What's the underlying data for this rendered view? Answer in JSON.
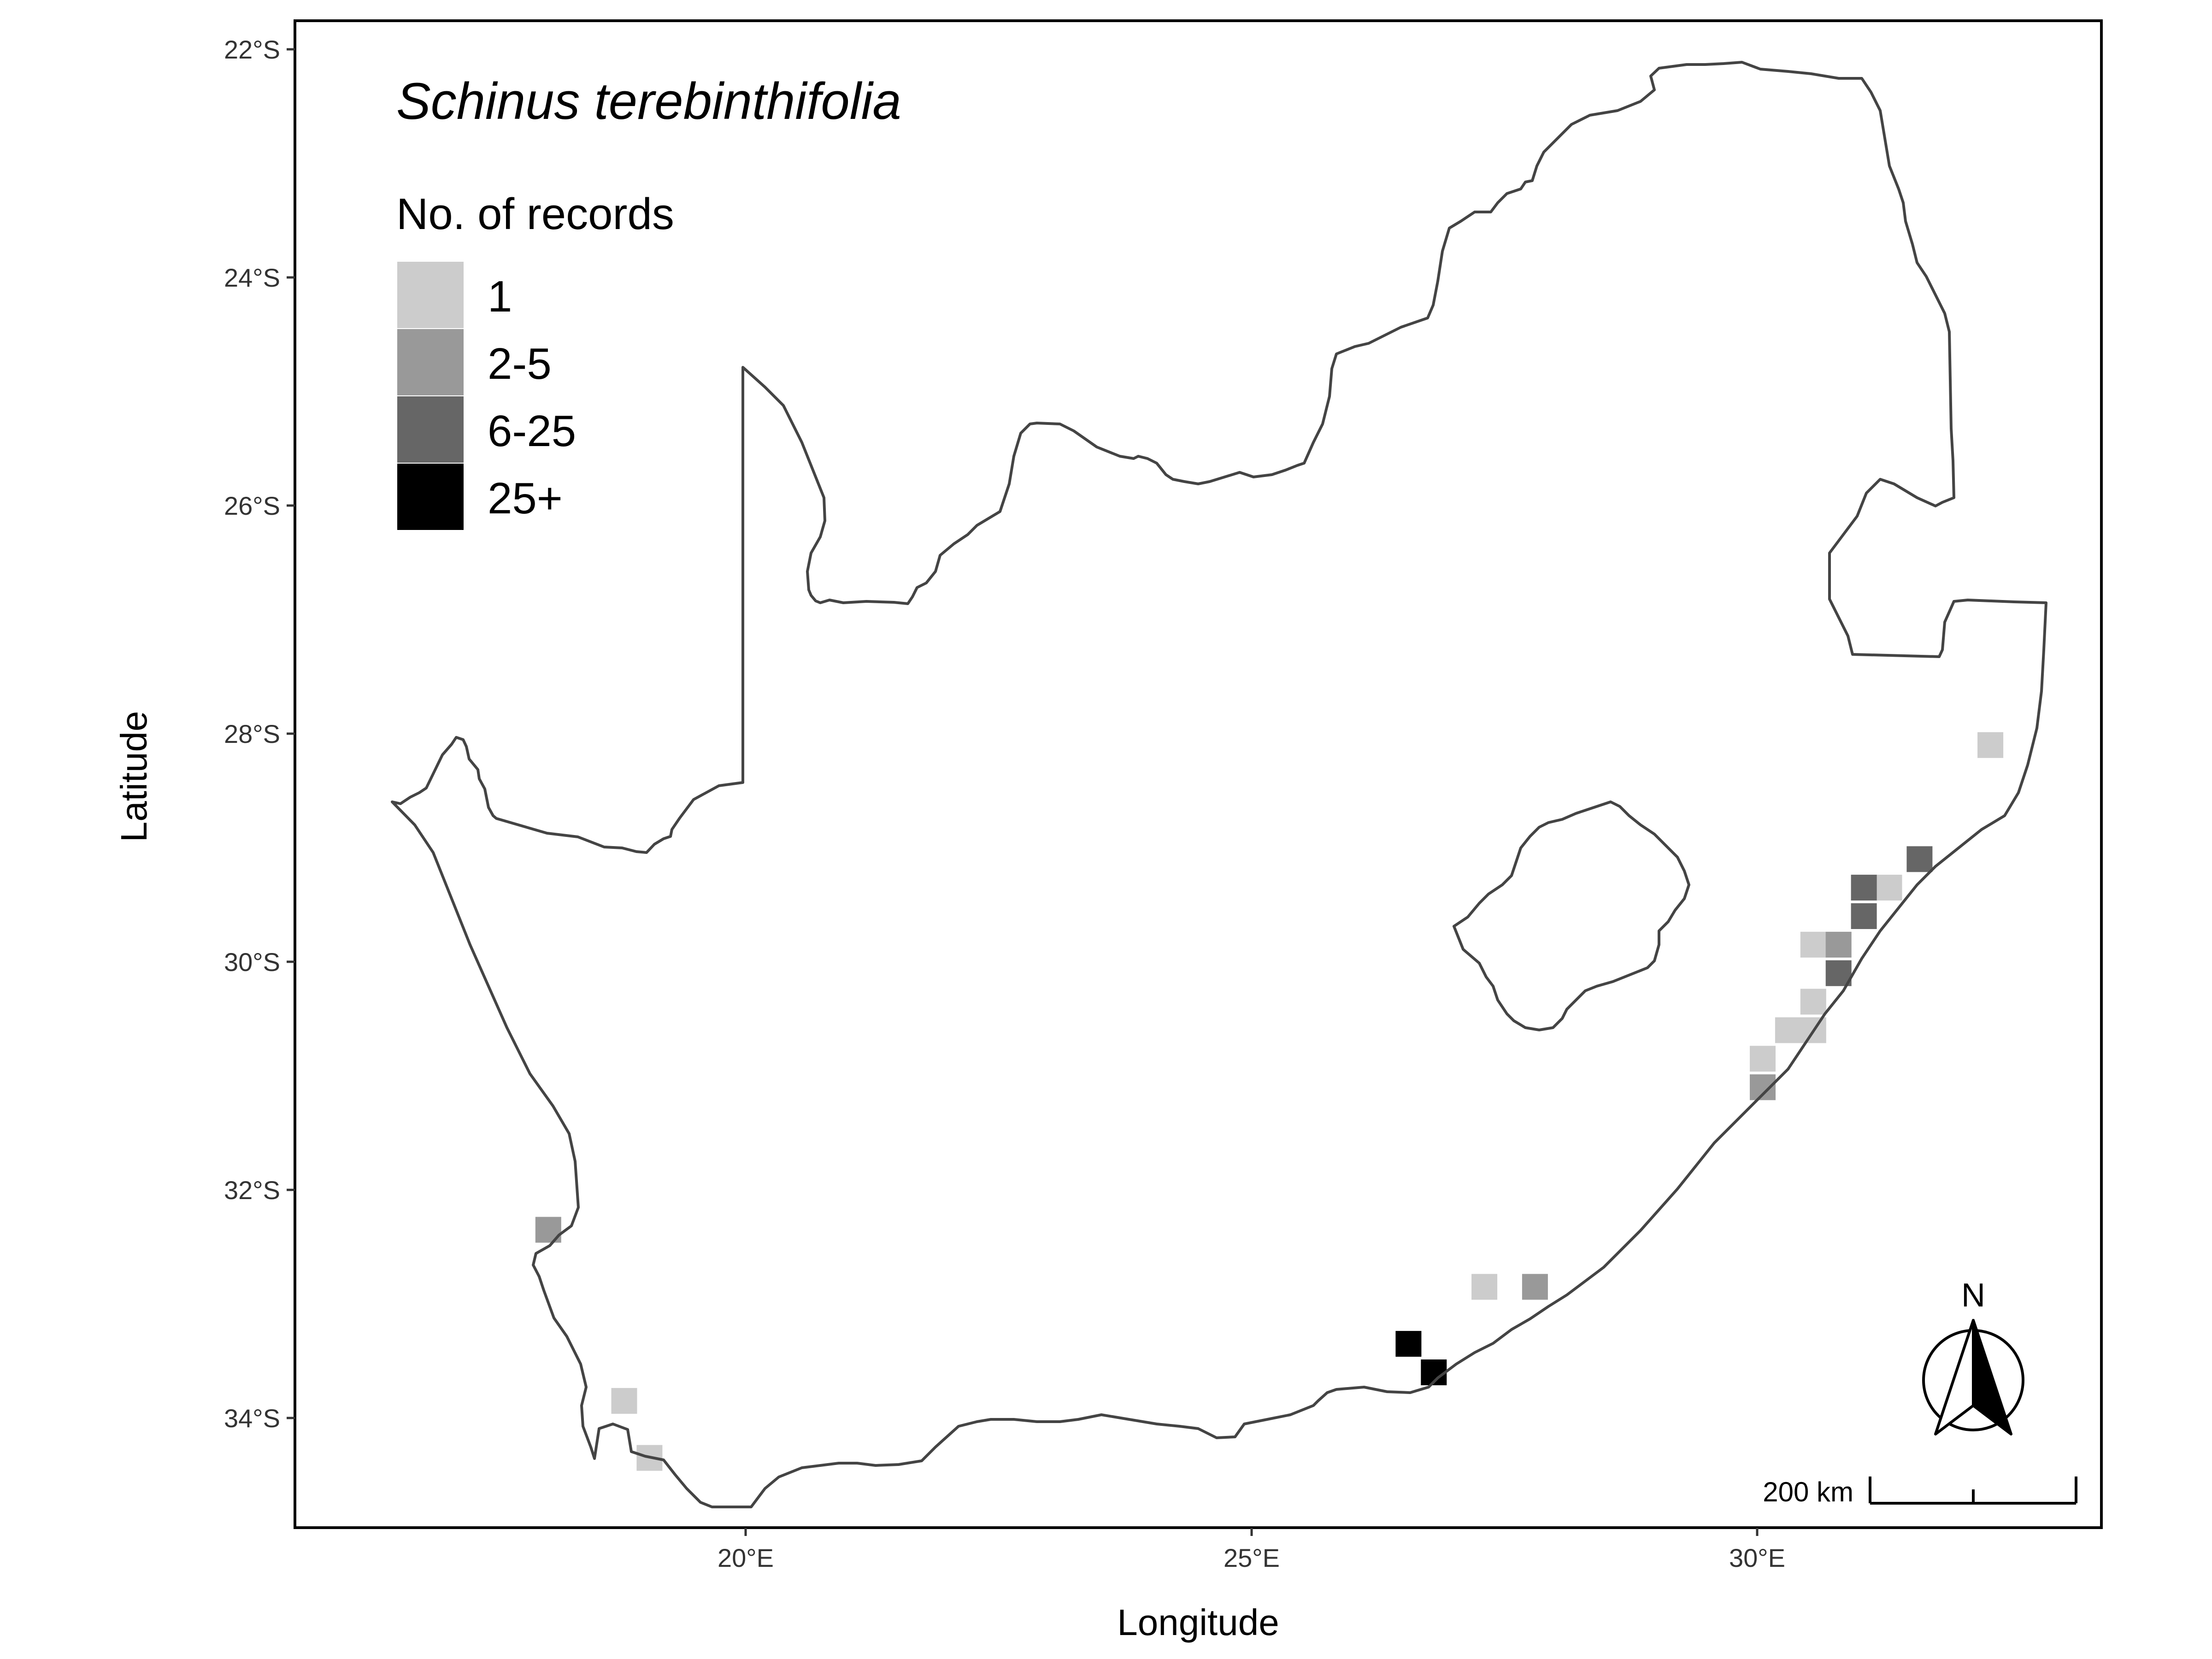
{
  "title": "Schinus terebinthifolia",
  "legend": {
    "title": "No. of records",
    "items": [
      {
        "label": "1",
        "color": "#cccccc"
      },
      {
        "label": "2-5",
        "color": "#999999"
      },
      {
        "label": "6-25",
        "color": "#666666"
      },
      {
        "label": "25+",
        "color": "#000000"
      }
    ]
  },
  "axes": {
    "xlabel": "Longitude",
    "ylabel": "Latitude",
    "x_ticks": [
      "20°E",
      "25°E",
      "30°E"
    ],
    "y_ticks": [
      "22°S",
      "24°S",
      "26°S",
      "28°S",
      "30°S",
      "32°S",
      "34°S"
    ]
  },
  "scale_bar": {
    "label": "200 km"
  },
  "north_arrow": {
    "label": "N"
  },
  "chart_data": {
    "type": "map",
    "x_range": [
      15.6,
      33.4
    ],
    "y_range": [
      -34.9,
      -21.75
    ],
    "grid": false,
    "legend_position": "top-left",
    "records": [
      {
        "lon": 32.3,
        "lat": -28.1,
        "category": "1"
      },
      {
        "lon": 31.6,
        "lat": -29.1,
        "category": "6-25"
      },
      {
        "lon": 31.3,
        "lat": -29.35,
        "category": "1"
      },
      {
        "lon": 31.05,
        "lat": -29.35,
        "category": "6-25"
      },
      {
        "lon": 31.05,
        "lat": -29.6,
        "category": "6-25"
      },
      {
        "lon": 30.55,
        "lat": -29.85,
        "category": "1"
      },
      {
        "lon": 30.8,
        "lat": -29.85,
        "category": "2-5"
      },
      {
        "lon": 30.8,
        "lat": -30.1,
        "category": "6-25"
      },
      {
        "lon": 30.55,
        "lat": -30.35,
        "category": "1"
      },
      {
        "lon": 30.3,
        "lat": -30.6,
        "category": "1"
      },
      {
        "lon": 30.55,
        "lat": -30.6,
        "category": "1"
      },
      {
        "lon": 30.05,
        "lat": -30.85,
        "category": "1"
      },
      {
        "lon": 30.05,
        "lat": -31.1,
        "category": "2-5"
      },
      {
        "lon": 27.3,
        "lat": -32.85,
        "category": "1"
      },
      {
        "lon": 27.8,
        "lat": -32.85,
        "category": "2-5"
      },
      {
        "lon": 26.55,
        "lat": -33.35,
        "category": "25+"
      },
      {
        "lon": 26.8,
        "lat": -33.6,
        "category": "25+"
      },
      {
        "lon": 18.05,
        "lat": -32.35,
        "category": "2-5"
      },
      {
        "lon": 18.8,
        "lat": -33.85,
        "category": "1"
      },
      {
        "lon": 19.05,
        "lat": -34.35,
        "category": "1"
      }
    ]
  }
}
